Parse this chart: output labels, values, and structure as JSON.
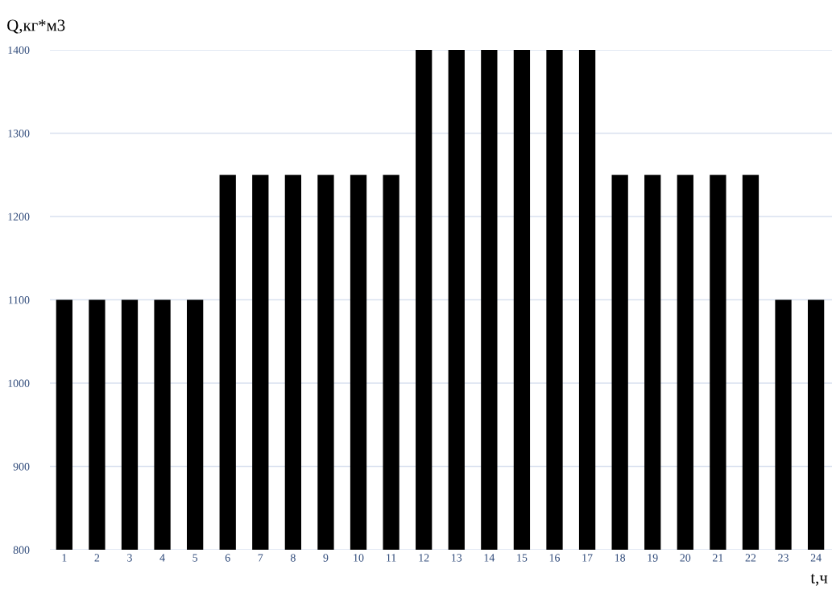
{
  "chart_data": {
    "type": "bar",
    "xlabel": "t,ч",
    "ylabel": "Q,кг*м3",
    "categories": [
      "1",
      "2",
      "3",
      "4",
      "5",
      "6",
      "7",
      "8",
      "9",
      "10",
      "11",
      "12",
      "13",
      "14",
      "15",
      "16",
      "17",
      "18",
      "19",
      "20",
      "21",
      "22",
      "23",
      "24"
    ],
    "values": [
      1100,
      1100,
      1100,
      1100,
      1100,
      1250,
      1250,
      1250,
      1250,
      1250,
      1250,
      1400,
      1400,
      1400,
      1400,
      1400,
      1400,
      1250,
      1250,
      1250,
      1250,
      1250,
      1100,
      1100
    ],
    "color": "#000000",
    "ylim": [
      800,
      1400
    ],
    "yticks": [
      800,
      900,
      1000,
      1100,
      1200,
      1300,
      1400
    ],
    "grid": "y",
    "legend": false
  }
}
